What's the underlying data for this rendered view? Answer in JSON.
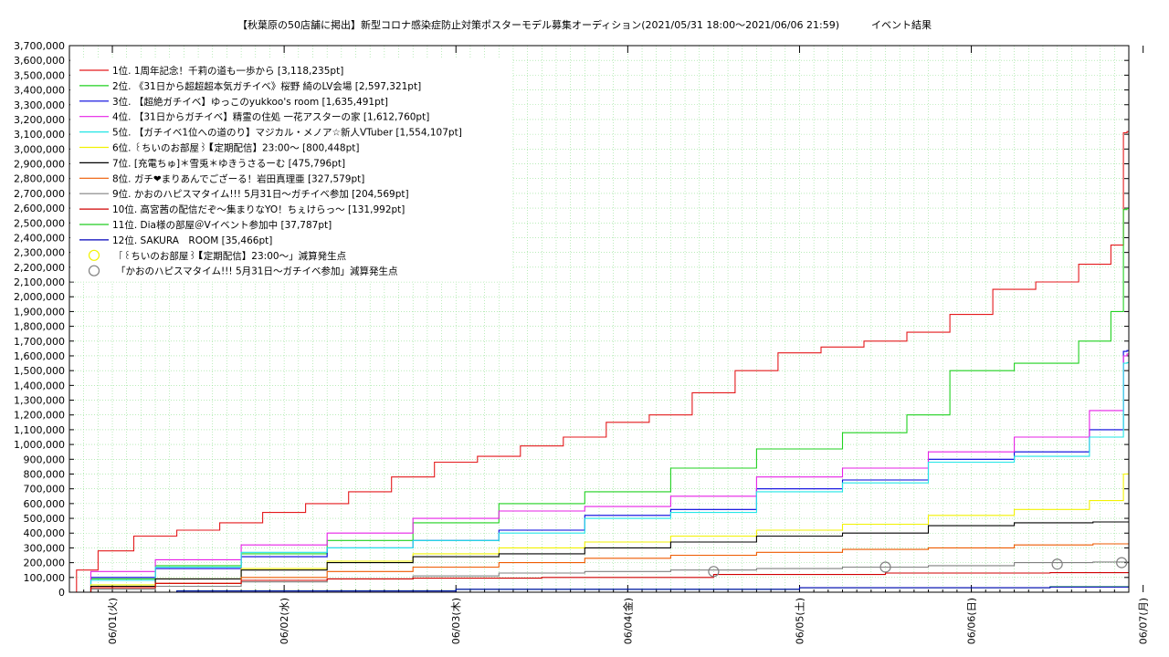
{
  "page": {
    "title": "【秋葉原の50店舗に掲出】新型コロナ感染症防止対策ポスターモデル募集オーディション(2021/05/31 18:00〜2021/06/06 21:59)",
    "title_suffix": "イベント結果"
  },
  "chart_data": {
    "type": "line",
    "title": "【秋葉原の50店舗に掲出】新型コロナ感染症防止対策ポスターモデル募集オーディション(2021/05/31 18:00〜2021/06/06 21:59)　　　イベント結果",
    "xlabel": "",
    "ylabel": "",
    "x_range": [
      "2021-05-31 18:00",
      "2021-06-06 22:00"
    ],
    "ylim": [
      0,
      3700000
    ],
    "y_tick_step": 100000,
    "y_ticks": [
      "0",
      "100,000",
      "200,000",
      "300,000",
      "400,000",
      "500,000",
      "600,000",
      "700,000",
      "800,000",
      "900,000",
      "1,000,000",
      "1,100,000",
      "1,200,000",
      "1,300,000",
      "1,400,000",
      "1,500,000",
      "1,600,000",
      "1,700,000",
      "1,800,000",
      "1,900,000",
      "2,000,000",
      "2,100,000",
      "2,200,000",
      "2,300,000",
      "2,400,000",
      "2,500,000",
      "2,600,000",
      "2,700,000",
      "2,800,000",
      "2,900,000",
      "3,000,000",
      "3,100,000",
      "3,200,000",
      "3,300,000",
      "3,400,000",
      "3,500,000",
      "3,600,000",
      "3,700,000"
    ],
    "x_ticks": [
      {
        "t": "2021-06-01 00:00",
        "label": "06/01(火)"
      },
      {
        "t": "2021-06-02 00:00",
        "label": "06/02(水)"
      },
      {
        "t": "2021-06-03 00:00",
        "label": "06/03(木)"
      },
      {
        "t": "2021-06-04 00:00",
        "label": "06/04(金)"
      },
      {
        "t": "2021-06-05 00:00",
        "label": "06/05(土)"
      },
      {
        "t": "2021-06-06 00:00",
        "label": "06/06(日)"
      },
      {
        "t": "2021-06-07 00:00",
        "label": "06/07(月)"
      }
    ],
    "grid": true,
    "legend_position": "top-left",
    "series": [
      {
        "name": "1位. 1周年記念！千莉の道も一歩から [3,118,235pt]",
        "color": "#e41a1c",
        "x": [
          "2021-05-31 18:00",
          "2021-05-31 20:00",
          "2021-06-01 00:00",
          "2021-06-01 06:00",
          "2021-06-01 12:00",
          "2021-06-01 18:00",
          "2021-06-02 00:00",
          "2021-06-02 06:00",
          "2021-06-02 12:00",
          "2021-06-02 18:00",
          "2021-06-03 00:00",
          "2021-06-03 06:00",
          "2021-06-03 12:00",
          "2021-06-03 18:00",
          "2021-06-04 00:00",
          "2021-06-04 06:00",
          "2021-06-04 12:00",
          "2021-06-04 18:00",
          "2021-06-05 00:00",
          "2021-06-05 06:00",
          "2021-06-05 12:00",
          "2021-06-05 18:00",
          "2021-06-06 00:00",
          "2021-06-06 06:00",
          "2021-06-06 12:00",
          "2021-06-06 18:00",
          "2021-06-06 21:00",
          "2021-06-06 21:30",
          "2021-06-06 22:00"
        ],
        "y": [
          0,
          150000,
          280000,
          380000,
          420000,
          470000,
          540000,
          600000,
          680000,
          780000,
          880000,
          920000,
          990000,
          1050000,
          1150000,
          1200000,
          1350000,
          1500000,
          1620000,
          1660000,
          1700000,
          1760000,
          1880000,
          2050000,
          2100000,
          2220000,
          2350000,
          3110000,
          3118235
        ]
      },
      {
        "name": "2位. 《31日から超超超本気ガチイベ》桜野 綺のLV会場 [2,597,321pt]",
        "color": "#1fd11f",
        "x": [
          "2021-05-31 18:00",
          "2021-06-01 00:00",
          "2021-06-01 12:00",
          "2021-06-02 00:00",
          "2021-06-02 12:00",
          "2021-06-03 00:00",
          "2021-06-03 12:00",
          "2021-06-04 00:00",
          "2021-06-04 12:00",
          "2021-06-05 00:00",
          "2021-06-05 12:00",
          "2021-06-05 18:00",
          "2021-06-06 00:00",
          "2021-06-06 12:00",
          "2021-06-06 18:00",
          "2021-06-06 21:00",
          "2021-06-06 21:30",
          "2021-06-06 22:00"
        ],
        "y": [
          0,
          90000,
          180000,
          260000,
          350000,
          470000,
          600000,
          680000,
          840000,
          970000,
          1080000,
          1200000,
          1500000,
          1550000,
          1700000,
          1900000,
          2590000,
          2597321
        ]
      },
      {
        "name": "3位. 【超絶ガチイベ】ゆっこのyukkoo's room [1,635,491pt]",
        "color": "#0000dd",
        "x": [
          "2021-05-31 18:00",
          "2021-06-01 00:00",
          "2021-06-01 12:00",
          "2021-06-02 00:00",
          "2021-06-02 12:00",
          "2021-06-03 00:00",
          "2021-06-03 12:00",
          "2021-06-04 00:00",
          "2021-06-04 12:00",
          "2021-06-05 00:00",
          "2021-06-05 12:00",
          "2021-06-06 00:00",
          "2021-06-06 12:00",
          "2021-06-06 21:00",
          "2021-06-06 21:30",
          "2021-06-06 22:00"
        ],
        "y": [
          0,
          100000,
          160000,
          240000,
          300000,
          350000,
          420000,
          520000,
          560000,
          700000,
          760000,
          900000,
          950000,
          1100000,
          1630000,
          1635491
        ]
      },
      {
        "name": "4位. 【31日からガチイベ】精霊の住処 一花アスターの家 [1,612,760pt]",
        "color": "#e620e6",
        "x": [
          "2021-05-31 18:00",
          "2021-06-01 00:00",
          "2021-06-01 12:00",
          "2021-06-02 00:00",
          "2021-06-02 12:00",
          "2021-06-03 00:00",
          "2021-06-03 12:00",
          "2021-06-04 00:00",
          "2021-06-04 12:00",
          "2021-06-05 00:00",
          "2021-06-05 12:00",
          "2021-06-06 00:00",
          "2021-06-06 12:00",
          "2021-06-06 21:00",
          "2021-06-06 21:30",
          "2021-06-06 22:00"
        ],
        "y": [
          0,
          140000,
          220000,
          320000,
          400000,
          500000,
          550000,
          580000,
          650000,
          780000,
          840000,
          950000,
          1050000,
          1230000,
          1600000,
          1612760
        ]
      },
      {
        "name": "5位. 【ガチイベ1位への道のり】マジカル・メノア☆新人VTuber [1,554,107pt]",
        "color": "#22e6e6",
        "x": [
          "2021-05-31 18:00",
          "2021-06-01 00:00",
          "2021-06-01 12:00",
          "2021-06-02 00:00",
          "2021-06-02 12:00",
          "2021-06-03 00:00",
          "2021-06-03 12:00",
          "2021-06-04 00:00",
          "2021-06-04 12:00",
          "2021-06-05 00:00",
          "2021-06-05 12:00",
          "2021-06-06 00:00",
          "2021-06-06 12:00",
          "2021-06-06 21:00",
          "2021-06-06 21:30",
          "2021-06-06 22:00"
        ],
        "y": [
          0,
          80000,
          170000,
          270000,
          300000,
          350000,
          400000,
          500000,
          540000,
          680000,
          740000,
          880000,
          920000,
          1050000,
          1550000,
          1554107
        ]
      },
      {
        "name": "6位. ꒰ちいのお部屋꒱【定期配信】23:00〜 [800,448pt]",
        "color": "#f2f200",
        "x": [
          "2021-05-31 18:00",
          "2021-06-01 00:00",
          "2021-06-01 12:00",
          "2021-06-02 00:00",
          "2021-06-02 12:00",
          "2021-06-03 00:00",
          "2021-06-03 12:00",
          "2021-06-04 00:00",
          "2021-06-04 12:00",
          "2021-06-05 00:00",
          "2021-06-05 12:00",
          "2021-06-06 00:00",
          "2021-06-06 12:00",
          "2021-06-06 21:00",
          "2021-06-06 21:30",
          "2021-06-06 22:00"
        ],
        "y": [
          0,
          50000,
          90000,
          160000,
          210000,
          260000,
          300000,
          340000,
          380000,
          420000,
          460000,
          520000,
          560000,
          620000,
          800000,
          800448
        ]
      },
      {
        "name": "7位. [充電ちゅ]＊雪兎＊ゆきうさるーむ [475,796pt]",
        "color": "#000000",
        "x": [
          "2021-05-31 18:00",
          "2021-06-01 00:00",
          "2021-06-01 12:00",
          "2021-06-02 00:00",
          "2021-06-02 12:00",
          "2021-06-03 00:00",
          "2021-06-03 12:00",
          "2021-06-04 00:00",
          "2021-06-04 12:00",
          "2021-06-05 00:00",
          "2021-06-05 12:00",
          "2021-06-06 00:00",
          "2021-06-06 12:00",
          "2021-06-06 22:00"
        ],
        "y": [
          0,
          40000,
          90000,
          150000,
          200000,
          240000,
          260000,
          300000,
          340000,
          380000,
          400000,
          450000,
          470000,
          475796
        ]
      },
      {
        "name": "8位. ガチ❤まりあんでござーる！岩田真理亜 [327,579pt]",
        "color": "#ee5a00",
        "x": [
          "2021-05-31 18:00",
          "2021-06-01 00:00",
          "2021-06-01 12:00",
          "2021-06-02 00:00",
          "2021-06-02 12:00",
          "2021-06-03 00:00",
          "2021-06-03 12:00",
          "2021-06-04 00:00",
          "2021-06-04 12:00",
          "2021-06-05 00:00",
          "2021-06-05 12:00",
          "2021-06-06 00:00",
          "2021-06-06 12:00",
          "2021-06-06 22:00"
        ],
        "y": [
          0,
          30000,
          60000,
          100000,
          140000,
          170000,
          200000,
          230000,
          250000,
          270000,
          290000,
          300000,
          320000,
          327579
        ]
      },
      {
        "name": "9位. かおのハピスマタイム!!! 5月31日〜ガチイベ参加 [204,569pt]",
        "color": "#808080",
        "x": [
          "2021-05-31 18:00",
          "2021-06-01 00:00",
          "2021-06-01 12:00",
          "2021-06-02 00:00",
          "2021-06-02 12:00",
          "2021-06-03 00:00",
          "2021-06-03 12:00",
          "2021-06-04 00:00",
          "2021-06-04 12:00",
          "2021-06-05 00:00",
          "2021-06-05 12:00",
          "2021-06-06 00:00",
          "2021-06-06 12:00",
          "2021-06-06 22:00"
        ],
        "y": [
          0,
          20000,
          40000,
          70000,
          90000,
          110000,
          130000,
          140000,
          150000,
          160000,
          170000,
          180000,
          200000,
          204569
        ]
      },
      {
        "name": "10位. 高宮茜の配信だぞ〜集まりなYO！ちぇけらっ〜 [131,992pt]",
        "color": "#d00000",
        "x": [
          "2021-05-31 18:00",
          "2021-06-01 00:00",
          "2021-06-01 12:00",
          "2021-06-02 00:00",
          "2021-06-02 12:00",
          "2021-06-03 00:00",
          "2021-06-04 00:00",
          "2021-06-05 00:00",
          "2021-06-06 00:00",
          "2021-06-06 22:00"
        ],
        "y": [
          0,
          30000,
          60000,
          80000,
          90000,
          95000,
          100000,
          120000,
          130000,
          131992
        ]
      },
      {
        "name": "11位. Dia様の部屋＠Vイベント参加中 [37,787pt]",
        "color": "#22cc22",
        "x": [
          "2021-05-31 18:00",
          "2021-06-02 00:00",
          "2021-06-04 00:00",
          "2021-06-06 00:00",
          "2021-06-06 22:00"
        ],
        "y": [
          0,
          10000,
          20000,
          30000,
          37787
        ]
      },
      {
        "name": "12位. SAKURA　ROOM [35,466pt]",
        "color": "#0000bb",
        "x": [
          "2021-05-31 18:00",
          "2021-06-02 00:00",
          "2021-06-04 00:00",
          "2021-06-06 00:00",
          "2021-06-06 22:00"
        ],
        "y": [
          0,
          8000,
          20000,
          30000,
          35466
        ]
      }
    ],
    "markers": [
      {
        "name": "「꒰ちいのお部屋꒱【定期配信】23:00〜」減算発生点",
        "color": "#f2f200",
        "points": []
      },
      {
        "name": "「かおのハピスマタイム!!! 5月31日〜ガチイベ参加」減算発生点",
        "color": "#808080",
        "points": [
          {
            "x": "2021-06-04 12:00",
            "y": 140000
          },
          {
            "x": "2021-06-05 12:00",
            "y": 170000
          },
          {
            "x": "2021-06-06 12:00",
            "y": 190000
          },
          {
            "x": "2021-06-06 21:00",
            "y": 200000
          }
        ]
      }
    ]
  }
}
